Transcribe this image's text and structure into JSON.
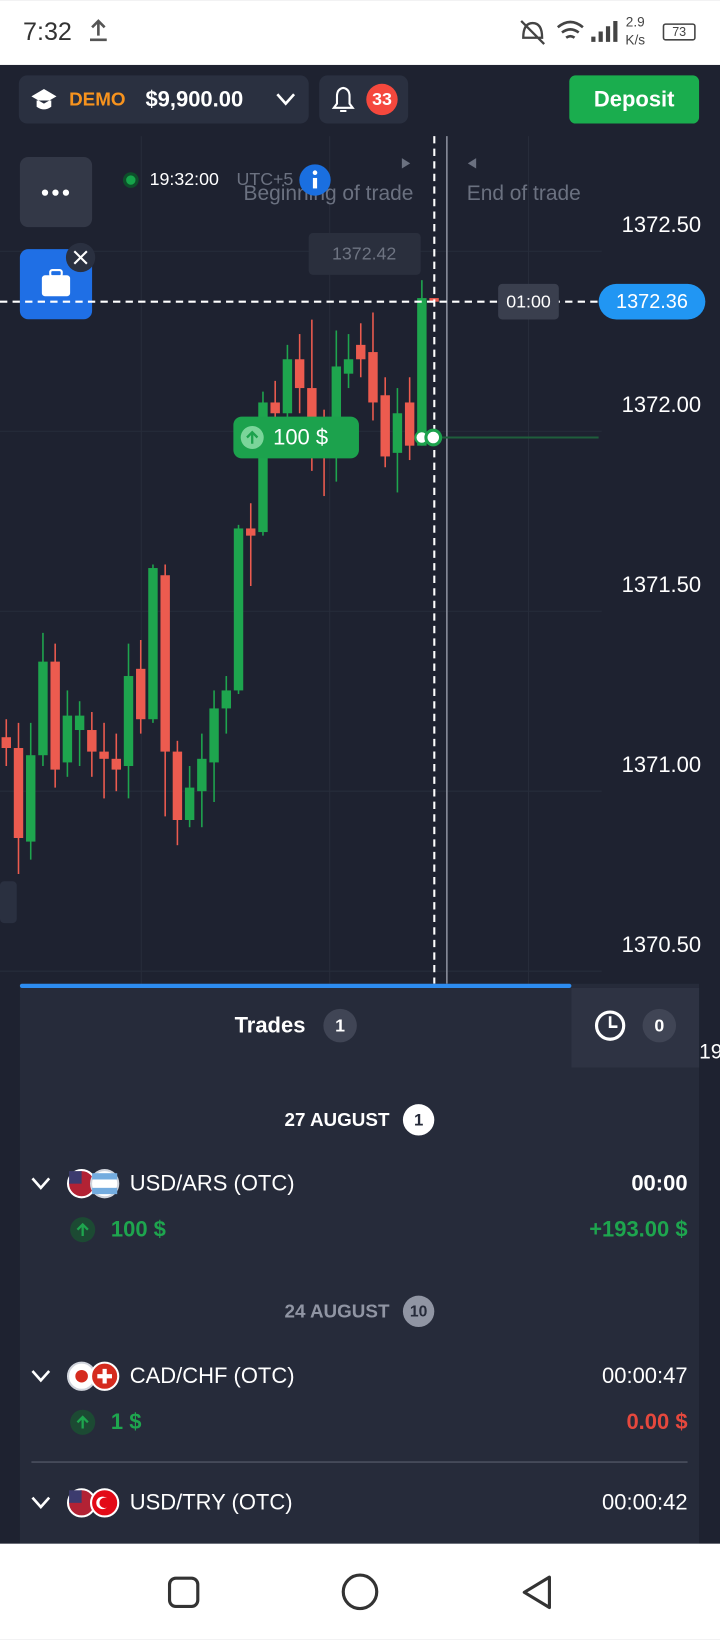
{
  "status_bar": {
    "time": "7:32",
    "speed": "2.9",
    "speed_unit": "K/s",
    "battery": "73"
  },
  "header": {
    "account_type": "DEMO",
    "balance": "$9,900.00",
    "notifications": "33",
    "deposit": "Deposit"
  },
  "chart": {
    "time": "19:32:00",
    "timezone": "UTC+5",
    "beginning_label": "Beginning of trade",
    "end_label": "End of trade",
    "hover_price": 1372.42,
    "current_price": 1372.36,
    "timer": "01:00",
    "trade_badge": "100 $",
    "ylim": [
      1370.465,
      1372.82
    ],
    "yticks": [
      {
        "value": 1372.5,
        "label": "1372.50"
      },
      {
        "value": 1372,
        "label": "1372.00"
      },
      {
        "value": 1371.5,
        "label": "1371.50"
      },
      {
        "value": 1371,
        "label": "1371.00"
      },
      {
        "value": 1370.5,
        "label": "1370.50"
      }
    ],
    "grid": true,
    "up_color": "#1ea54e",
    "down_color": "#ec5b4f",
    "candles": [
      {
        "open": 1371.15,
        "high": 1371.2,
        "low": 1371.07,
        "close": 1371.12
      },
      {
        "open": 1371.12,
        "high": 1371.19,
        "low": 1370.77,
        "close": 1370.87
      },
      {
        "open": 1370.86,
        "high": 1371.19,
        "low": 1370.81,
        "close": 1371.1
      },
      {
        "open": 1371.1,
        "high": 1371.44,
        "low": 1371.07,
        "close": 1371.36
      },
      {
        "open": 1371.36,
        "high": 1371.41,
        "low": 1371.01,
        "close": 1371.06
      },
      {
        "open": 1371.08,
        "high": 1371.28,
        "low": 1371.04,
        "close": 1371.21
      },
      {
        "open": 1371.17,
        "high": 1371.25,
        "low": 1371.07,
        "close": 1371.21
      },
      {
        "open": 1371.17,
        "high": 1371.22,
        "low": 1371.04,
        "close": 1371.11
      },
      {
        "open": 1371.11,
        "high": 1371.19,
        "low": 1370.98,
        "close": 1371.09
      },
      {
        "open": 1371.09,
        "high": 1371.16,
        "low": 1371.0,
        "close": 1371.06
      },
      {
        "open": 1371.07,
        "high": 1371.41,
        "low": 1370.98,
        "close": 1371.32
      },
      {
        "open": 1371.34,
        "high": 1371.42,
        "low": 1371.16,
        "close": 1371.2
      },
      {
        "open": 1371.2,
        "high": 1371.63,
        "low": 1371.19,
        "close": 1371.62
      },
      {
        "open": 1371.6,
        "high": 1371.63,
        "low": 1370.93,
        "close": 1371.11
      },
      {
        "open": 1371.11,
        "high": 1371.14,
        "low": 1370.85,
        "close": 1370.92
      },
      {
        "open": 1370.92,
        "high": 1371.07,
        "low": 1370.9,
        "close": 1371.01
      },
      {
        "open": 1371.0,
        "high": 1371.16,
        "low": 1370.9,
        "close": 1371.09
      },
      {
        "open": 1371.08,
        "high": 1371.28,
        "low": 1370.97,
        "close": 1371.23
      },
      {
        "open": 1371.23,
        "high": 1371.32,
        "low": 1371.16,
        "close": 1371.28
      },
      {
        "open": 1371.28,
        "high": 1371.74,
        "low": 1371.27,
        "close": 1371.73
      },
      {
        "open": 1371.73,
        "high": 1371.8,
        "low": 1371.57,
        "close": 1371.71
      },
      {
        "open": 1371.72,
        "high": 1372.11,
        "low": 1371.71,
        "close": 1372.08
      },
      {
        "open": 1372.08,
        "high": 1372.14,
        "low": 1372.0,
        "close": 1372.05
      },
      {
        "open": 1372.05,
        "high": 1372.24,
        "low": 1372.03,
        "close": 1372.2
      },
      {
        "open": 1372.2,
        "high": 1372.27,
        "low": 1372.05,
        "close": 1372.12
      },
      {
        "open": 1372.12,
        "high": 1372.31,
        "low": 1371.89,
        "close": 1372.03
      },
      {
        "open": 1372.03,
        "high": 1372.06,
        "low": 1371.82,
        "close": 1371.95
      },
      {
        "open": 1371.95,
        "high": 1372.28,
        "low": 1371.86,
        "close": 1372.18
      },
      {
        "open": 1372.16,
        "high": 1372.27,
        "low": 1372.12,
        "close": 1372.2
      },
      {
        "open": 1372.24,
        "high": 1372.3,
        "low": 1372.15,
        "close": 1372.2
      },
      {
        "open": 1372.22,
        "high": 1372.33,
        "low": 1372.03,
        "close": 1372.08
      },
      {
        "open": 1372.1,
        "high": 1372.15,
        "low": 1371.9,
        "close": 1371.93
      },
      {
        "open": 1371.94,
        "high": 1372.12,
        "low": 1371.83,
        "close": 1372.05
      },
      {
        "open": 1372.08,
        "high": 1372.15,
        "low": 1371.92,
        "close": 1371.96
      },
      {
        "open": 1371.96,
        "high": 1372.42,
        "low": 1371.96,
        "close": 1372.37
      },
      {
        "open": 1372.37,
        "high": 1372.37,
        "low": 1372.36,
        "close": 1372.36
      }
    ]
  },
  "trades": {
    "tab": "Trades",
    "count": "1",
    "history_count": "0",
    "cut_label": "19",
    "groups": [
      {
        "date": "27 AUGUST",
        "count": "1",
        "items": [
          {
            "pair": "USD/ARS (OTC)",
            "time": "00:00",
            "amount": "100 $",
            "result": "+193.00 $",
            "result_color": "#1ea54e"
          }
        ]
      },
      {
        "date": "24 AUGUST",
        "count": "10",
        "items": [
          {
            "pair": "CAD/CHF (OTC)",
            "time": "00:00:47",
            "amount": "1 $",
            "result": "0.00 $",
            "result_color": "#e5483d"
          },
          {
            "pair": "USD/TRY (OTC)",
            "time": "00:00:42"
          }
        ]
      }
    ]
  }
}
